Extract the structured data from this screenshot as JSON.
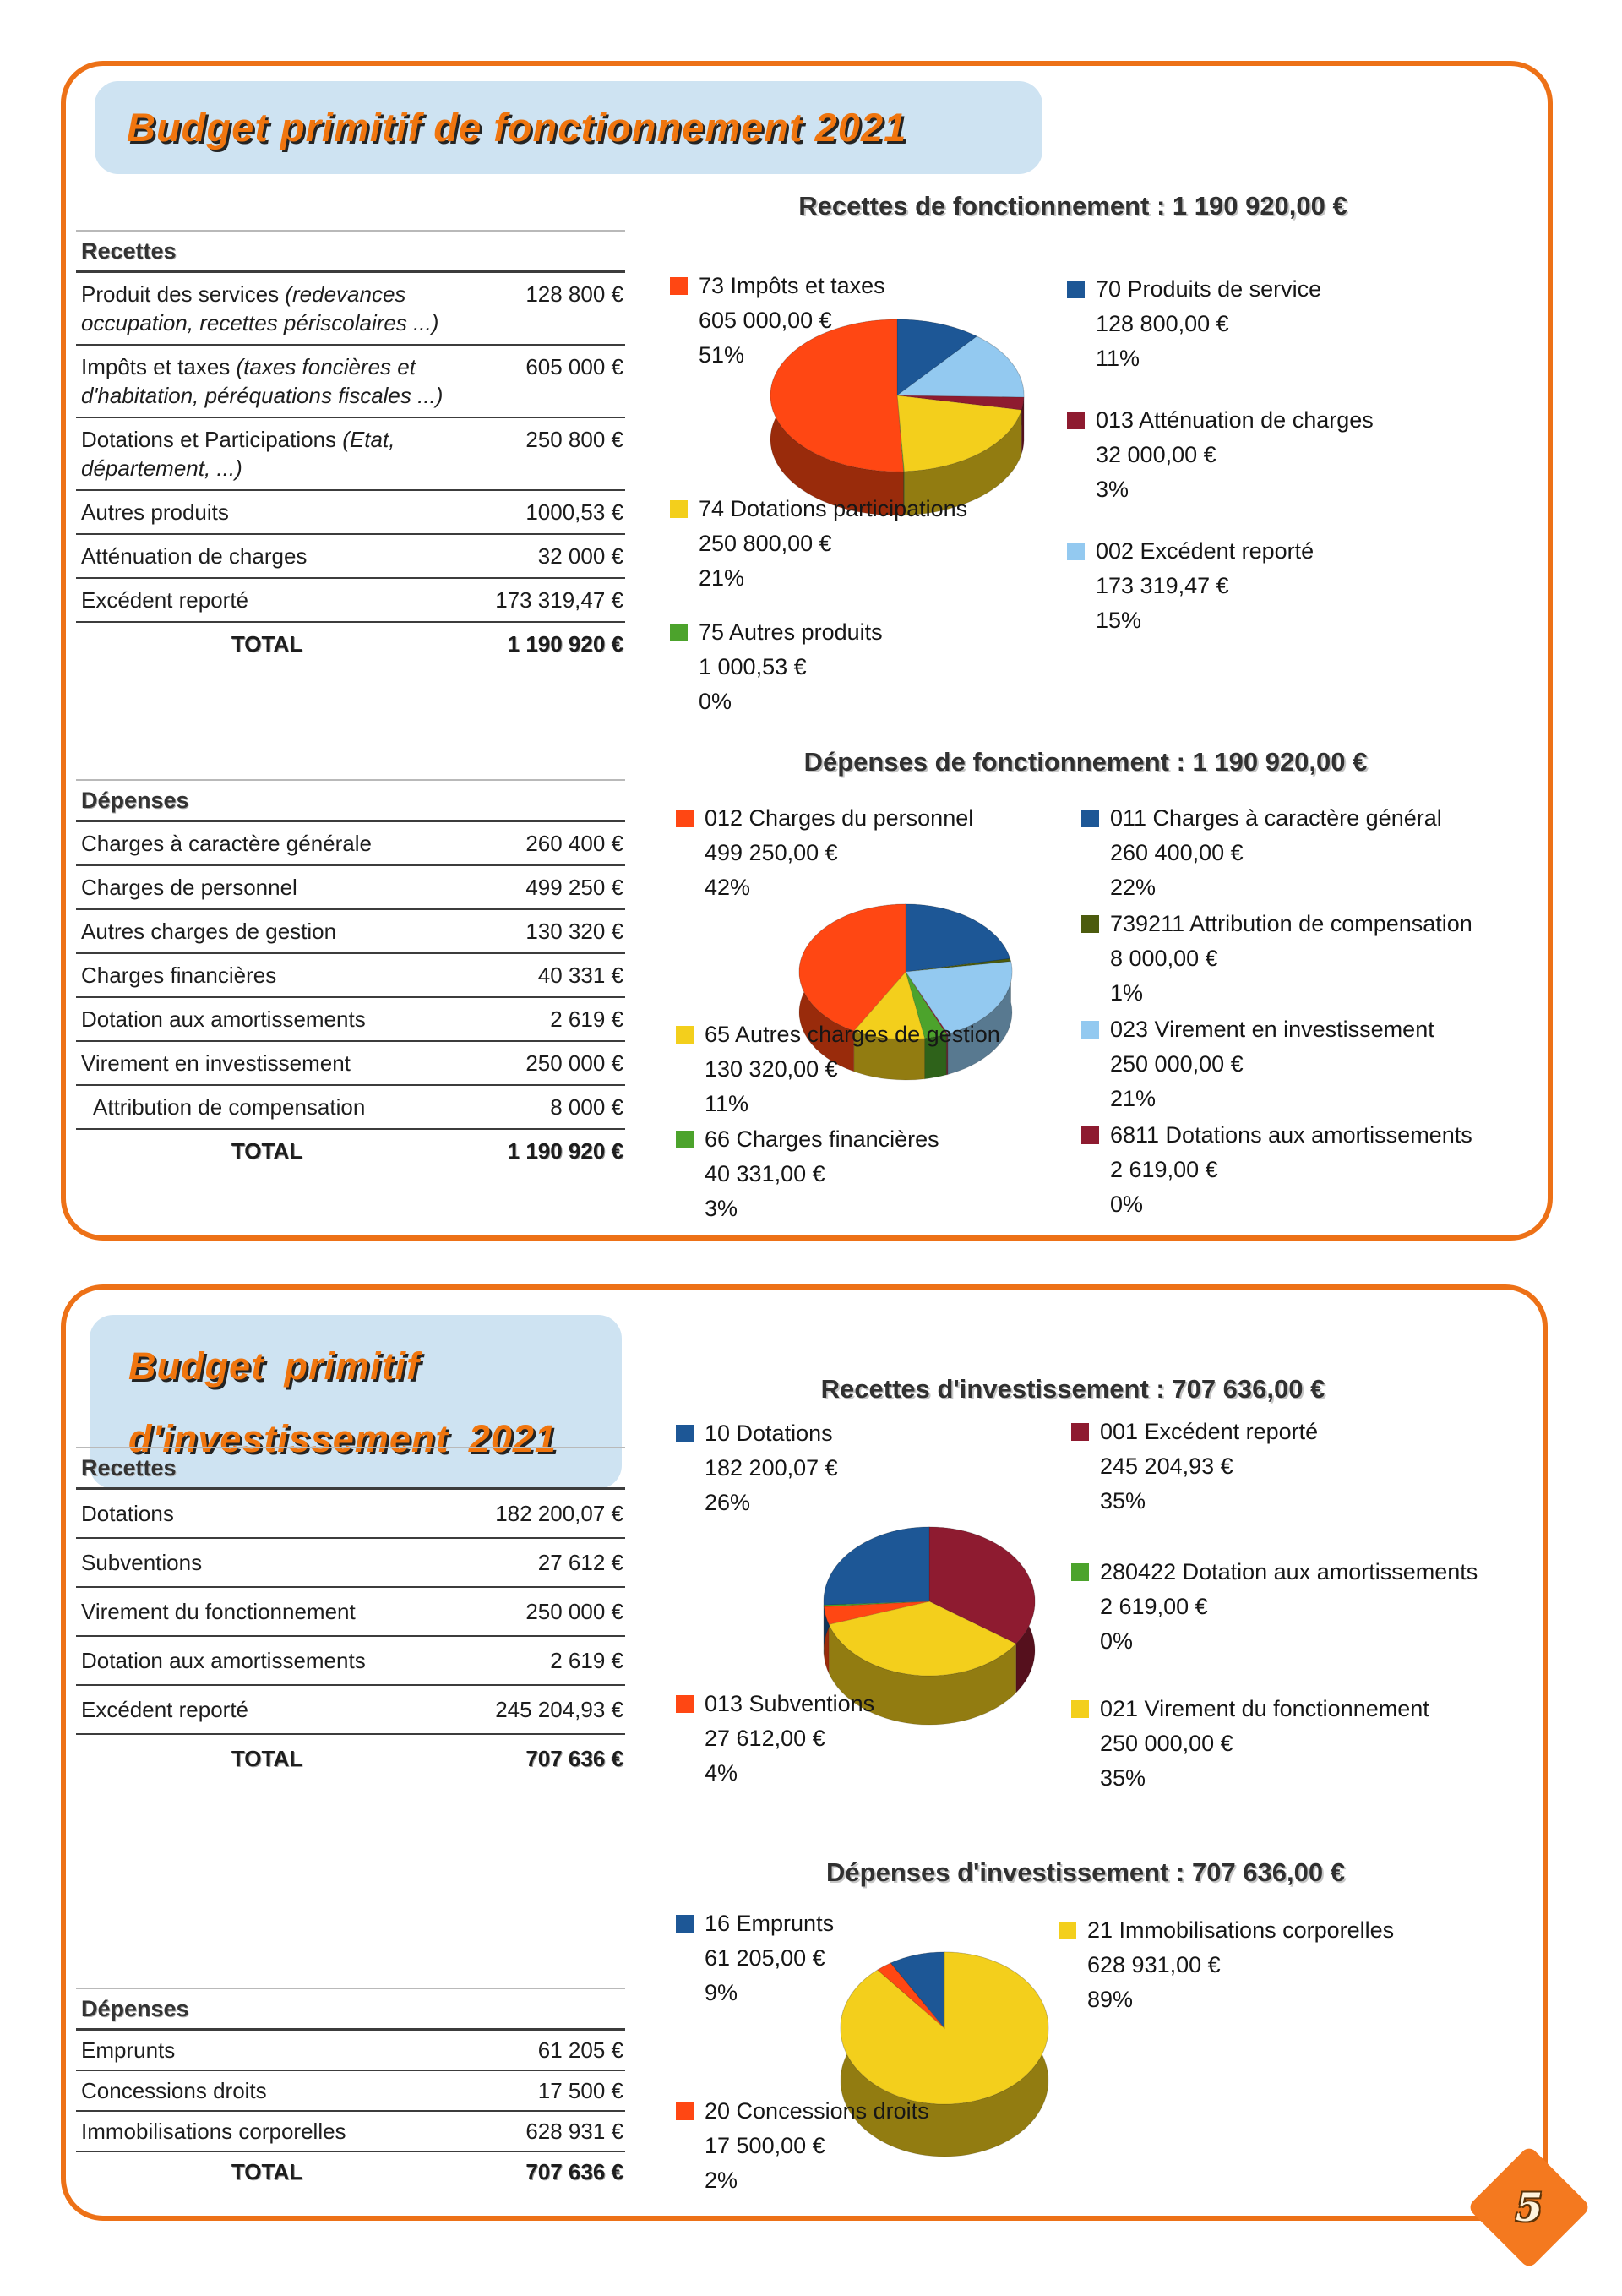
{
  "page": {
    "number": "5"
  },
  "theme": {
    "accent_orange": "#ED7117",
    "banner_bg": "#CEE3F2",
    "banner_text": "#F0750E",
    "diamond_orange": "#F4791F"
  },
  "fonctionnement": {
    "banner": "Budget primitif de fonctionnement 2021",
    "recettes_table": {
      "header": "Recettes",
      "rows": [
        {
          "label": "Produit des services",
          "note": "(redevances occupation, recettes périscolaires ...)",
          "value": "128 800 €"
        },
        {
          "label": "Impôts et taxes",
          "note": "(taxes foncières et d'habitation, péréquations fiscales ...)",
          "value": "605 000 €"
        },
        {
          "label": "Dotations et Participations",
          "note": "(Etat, département, ...)",
          "value": "250 800 €"
        },
        {
          "label": "Autres produits",
          "note": "",
          "value": "1000,53 €"
        },
        {
          "label": "Atténuation de charges",
          "note": "",
          "value": "32 000 €"
        },
        {
          "label": "Excédent reporté",
          "note": "",
          "value": "173 319,47 €"
        }
      ],
      "total_label": "TOTAL",
      "total_value": "1 190 920 €"
    },
    "depenses_table": {
      "header": "Dépenses",
      "rows": [
        {
          "label": "Charges à caractère générale",
          "note": "",
          "value": "260 400 €"
        },
        {
          "label": "Charges de personnel",
          "note": "",
          "value": "499 250 €"
        },
        {
          "label": "Autres charges de gestion",
          "note": "",
          "value": "130 320 €"
        },
        {
          "label": "Charges financières",
          "note": "",
          "value": "40 331 €"
        },
        {
          "label": "Dotation aux amortissements",
          "note": "",
          "value": "2 619 €"
        },
        {
          "label": "Virement en investissement",
          "note": "",
          "value": "250 000 €"
        },
        {
          "label": "Attribution de compensation",
          "note": "",
          "value": "8 000 €",
          "indent": true
        }
      ],
      "total_label": "TOTAL",
      "total_value": "1 190 920 €"
    }
  },
  "investissement": {
    "banner_line1": "Budget primitif",
    "banner_line2": "d'investissement 2021",
    "recettes_table": {
      "header": "Recettes",
      "rows": [
        {
          "label": "Dotations",
          "note": "",
          "value": "182 200,07 €"
        },
        {
          "label": "Subventions",
          "note": "",
          "value": "27 612 €"
        },
        {
          "label": "Virement du fonctionnement",
          "note": "",
          "value": "250 000 €"
        },
        {
          "label": "Dotation aux amortissements",
          "note": "",
          "value": "2 619 €"
        },
        {
          "label": "Excédent reporté",
          "note": "",
          "value": "245 204,93 €"
        }
      ],
      "total_label": "TOTAL",
      "total_value": "707 636 €"
    },
    "depenses_table": {
      "header": "Dépenses",
      "rows": [
        {
          "label": "Emprunts",
          "note": "",
          "value": "61 205 €"
        },
        {
          "label": "Concessions droits",
          "note": "",
          "value": "17 500 €"
        },
        {
          "label": "Immobilisations corporelles",
          "note": "",
          "value": "628 931 €"
        }
      ],
      "total_label": "TOTAL",
      "total_value": "707 636 €"
    }
  },
  "chart_data": [
    {
      "type": "pie",
      "title": "Recettes de fonctionnement : 1 190 920,00 €",
      "legend_position": "sides",
      "items": [
        {
          "label": "73 Impôts et taxes",
          "amount": "605 000,00 €",
          "pct": "51%",
          "value": 605000,
          "color": "#FF4713"
        },
        {
          "label": "74 Dotations participations",
          "amount": "250 800,00 €",
          "pct": "21%",
          "value": 250800,
          "color": "#F3CF1C"
        },
        {
          "label": "75 Autres produits",
          "amount": "1 000,53 €",
          "pct": "0%",
          "value": 1000.53,
          "color": "#4CA32C"
        },
        {
          "label": "70 Produits de service",
          "amount": "128 800,00 €",
          "pct": "11%",
          "value": 128800,
          "color": "#1D5796"
        },
        {
          "label": "013 Atténuation de charges",
          "amount": "32 000,00 €",
          "pct": "3%",
          "value": 32000,
          "color": "#8E1B30"
        },
        {
          "label": "002 Excédent reporté",
          "amount": "173 319,47 €",
          "pct": "15%",
          "value": 173319.47,
          "color": "#93C9F0"
        }
      ],
      "draw_order": [
        3,
        5,
        4,
        1,
        2,
        0
      ]
    },
    {
      "type": "pie",
      "title": "Dépenses de fonctionnement : 1 190 920,00 €",
      "legend_position": "sides",
      "items": [
        {
          "label": "012 Charges du personnel",
          "amount": "499 250,00 €",
          "pct": "42%",
          "value": 499250,
          "color": "#FF4713"
        },
        {
          "label": "65 Autres charges de gestion",
          "amount": "130 320,00 €",
          "pct": "11%",
          "value": 130320,
          "color": "#F3CF1C"
        },
        {
          "label": "66 Charges financières",
          "amount": "40 331,00 €",
          "pct": "3%",
          "value": 40331,
          "color": "#4CA32C"
        },
        {
          "label": "011 Charges à caractère général",
          "amount": "260 400,00 €",
          "pct": "22%",
          "value": 260400,
          "color": "#1D5796"
        },
        {
          "label": "739211 Attribution de compensation",
          "amount": "8 000,00 €",
          "pct": "1%",
          "value": 8000,
          "color": "#4C5B0E"
        },
        {
          "label": "023 Virement en investissement",
          "amount": "250 000,00 €",
          "pct": "21%",
          "value": 250000,
          "color": "#93C9F0"
        },
        {
          "label": "6811 Dotations aux amortissements",
          "amount": "2 619,00 €",
          "pct": "0%",
          "value": 2619,
          "color": "#8E1B30"
        }
      ],
      "draw_order": [
        3,
        4,
        5,
        6,
        2,
        1,
        0
      ]
    },
    {
      "type": "pie",
      "title": "Recettes d'investissement : 707 636,00 €",
      "legend_position": "sides",
      "items": [
        {
          "label": "10 Dotations",
          "amount": "182 200,07 €",
          "pct": "26%",
          "value": 182200.07,
          "color": "#1D5796"
        },
        {
          "label": "013 Subventions",
          "amount": "27 612,00 €",
          "pct": "4%",
          "value": 27612,
          "color": "#FF4713"
        },
        {
          "label": "001 Excédent reporté",
          "amount": "245 204,93 €",
          "pct": "35%",
          "value": 245204.93,
          "color": "#8E1B30"
        },
        {
          "label": "280422 Dotation aux amortissements",
          "amount": "2 619,00 €",
          "pct": "0%",
          "value": 2619,
          "color": "#4CA32C"
        },
        {
          "label": "021 Virement du fonctionnement",
          "amount": "250 000,00 €",
          "pct": "35%",
          "value": 250000,
          "color": "#F3CF1C"
        }
      ],
      "draw_order": [
        2,
        4,
        1,
        3,
        0
      ]
    },
    {
      "type": "pie",
      "title": "Dépenses d'investissement : 707 636,00 €",
      "legend_position": "sides",
      "items": [
        {
          "label": "16 Emprunts",
          "amount": "61 205,00 €",
          "pct": "9%",
          "value": 61205,
          "color": "#1D5796"
        },
        {
          "label": "20 Concessions droits",
          "amount": "17 500,00 €",
          "pct": "2%",
          "value": 17500,
          "color": "#FF4713"
        },
        {
          "label": "21 Immobilisations corporelles",
          "amount": "628 931,00 €",
          "pct": "89%",
          "value": 628931,
          "color": "#F3CF1C"
        }
      ],
      "draw_order": [
        2,
        1,
        0
      ]
    }
  ]
}
